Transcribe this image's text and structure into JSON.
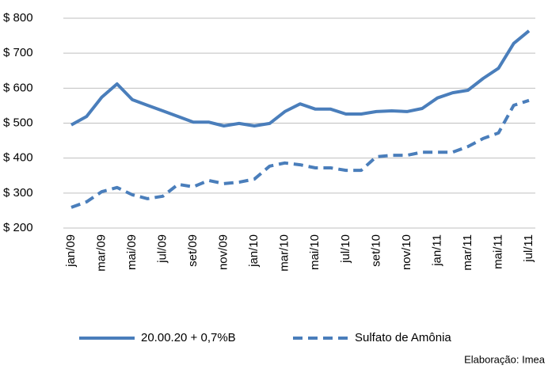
{
  "chart_data": {
    "type": "line",
    "categories": [
      "jan/09",
      null,
      "mar/09",
      null,
      "mai/09",
      null,
      "jul/09",
      null,
      "set/09",
      null,
      "nov/09",
      null,
      "jan/10",
      null,
      "mar/10",
      null,
      "mai/10",
      null,
      "jul/10",
      null,
      "set/10",
      null,
      "nov/10",
      null,
      "jan/11",
      null,
      "mar/11",
      null,
      "mai/11",
      null,
      "jul/11"
    ],
    "series": [
      {
        "name": "20.00.20 + 0,7%B",
        "color": "#4a7ebb",
        "line_style": "solid",
        "values": [
          495,
          519,
          574,
          612,
          567,
          551,
          535,
          519,
          503,
          503,
          492,
          499,
          492,
          499,
          533,
          555,
          540,
          540,
          526,
          526,
          533,
          535,
          533,
          542,
          572,
          587,
          594,
          628,
          657,
          728,
          764
        ]
      },
      {
        "name": "Sulfato de Amônia",
        "color": "#4a7ebb",
        "line_style": "dashed",
        "values": [
          259,
          275,
          304,
          316,
          295,
          284,
          291,
          325,
          318,
          336,
          327,
          331,
          340,
          377,
          386,
          381,
          372,
          372,
          365,
          365,
          404,
          408,
          408,
          417,
          417,
          417,
          433,
          456,
          472,
          551,
          565
        ]
      }
    ],
    "ylim": [
      200,
      800
    ],
    "yticks": [
      {
        "value": 200,
        "label": "$ 200"
      },
      {
        "value": 300,
        "label": "$ 300"
      },
      {
        "value": 400,
        "label": "$ 400"
      },
      {
        "value": 500,
        "label": "$ 500"
      },
      {
        "value": 600,
        "label": "$ 600"
      },
      {
        "value": 700,
        "label": "$ 700"
      },
      {
        "value": 800,
        "label": "$ 800"
      }
    ],
    "grid": true,
    "legend": "bottom",
    "source": "Elaboração: Imea"
  }
}
